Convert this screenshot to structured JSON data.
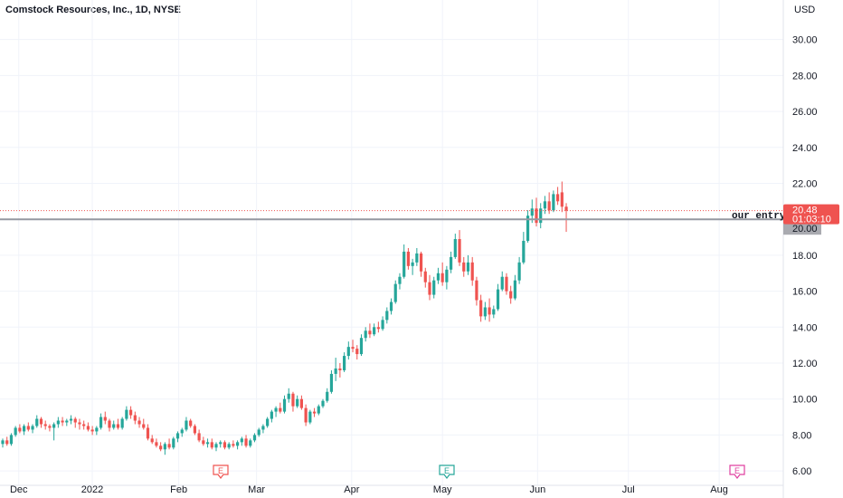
{
  "header": {
    "title": "Comstock Resources, Inc., 1D, NYSE"
  },
  "colors": {
    "up": "#26a69a",
    "down": "#ef5350",
    "grid": "#f0f3fa",
    "entry_line": "#9598a1",
    "last_price_line": "#ef5350",
    "earnings_up": "#26a69a",
    "earnings_down": "#ef5350",
    "earnings_future": "#e040a0"
  },
  "chart_data": {
    "type": "candlestick",
    "title": "Comstock Resources, Inc., 1D, NYSE",
    "currency": "USD",
    "ylim": [
      5.2,
      32.2
    ],
    "y_ticks": [
      "6.00",
      "8.00",
      "10.00",
      "12.00",
      "14.00",
      "16.00",
      "18.00",
      "20.00",
      "22.00",
      "24.00",
      "26.00",
      "28.00",
      "30.00"
    ],
    "x_ticks": [
      "Dec",
      "2022",
      "Feb",
      "Mar",
      "Apr",
      "May",
      "Jun",
      "Jul",
      "Aug"
    ],
    "last_price": {
      "value": "20.48",
      "countdown": "01:03:10"
    },
    "entry_line": {
      "label": "our entry",
      "value": "20.00"
    },
    "earnings_markers": [
      {
        "label": "E",
        "date_label": "Feb",
        "type": "past-down"
      },
      {
        "label": "E",
        "date_label": "May",
        "type": "past-up"
      },
      {
        "label": "E",
        "date_label": "Aug",
        "type": "future"
      }
    ],
    "candles": [
      [
        7.5,
        7.8,
        7.3,
        7.7
      ],
      [
        7.7,
        7.9,
        7.4,
        7.5
      ],
      [
        7.5,
        8.1,
        7.4,
        8.0
      ],
      [
        8.0,
        8.5,
        7.9,
        8.4
      ],
      [
        8.4,
        8.6,
        8.1,
        8.2
      ],
      [
        8.2,
        8.6,
        8.0,
        8.5
      ],
      [
        8.5,
        8.7,
        8.2,
        8.3
      ],
      [
        8.3,
        8.6,
        8.1,
        8.5
      ],
      [
        8.5,
        9.1,
        8.4,
        8.9
      ],
      [
        8.9,
        9.0,
        8.4,
        8.6
      ],
      [
        8.6,
        8.8,
        8.3,
        8.5
      ],
      [
        8.5,
        8.6,
        8.2,
        8.4
      ],
      [
        8.4,
        8.7,
        7.7,
        8.6
      ],
      [
        8.6,
        9.0,
        8.4,
        8.8
      ],
      [
        8.8,
        9.0,
        8.5,
        8.7
      ],
      [
        8.7,
        8.9,
        8.5,
        8.8
      ],
      [
        8.8,
        9.1,
        8.6,
        8.9
      ],
      [
        8.9,
        9.0,
        8.4,
        8.7
      ],
      [
        8.7,
        8.9,
        8.3,
        8.6
      ],
      [
        8.6,
        8.8,
        8.3,
        8.5
      ],
      [
        8.5,
        8.7,
        8.2,
        8.3
      ],
      [
        8.3,
        8.5,
        8.0,
        8.2
      ],
      [
        8.2,
        8.5,
        8.0,
        8.4
      ],
      [
        8.4,
        9.2,
        8.3,
        9.0
      ],
      [
        9.0,
        9.3,
        8.6,
        8.8
      ],
      [
        8.8,
        8.9,
        8.2,
        8.4
      ],
      [
        8.4,
        8.8,
        8.3,
        8.6
      ],
      [
        8.6,
        8.9,
        8.3,
        8.4
      ],
      [
        8.4,
        9.0,
        8.3,
        8.9
      ],
      [
        8.9,
        9.6,
        8.8,
        9.4
      ],
      [
        9.4,
        9.6,
        8.9,
        9.1
      ],
      [
        9.1,
        9.3,
        8.6,
        8.8
      ],
      [
        8.8,
        9.0,
        8.4,
        8.6
      ],
      [
        8.6,
        8.9,
        8.3,
        8.4
      ],
      [
        8.4,
        8.6,
        7.7,
        7.8
      ],
      [
        7.8,
        8.0,
        7.5,
        7.6
      ],
      [
        7.6,
        7.8,
        7.3,
        7.4
      ],
      [
        7.4,
        7.6,
        7.1,
        7.2
      ],
      [
        7.2,
        7.6,
        6.9,
        7.5
      ],
      [
        7.5,
        7.8,
        7.2,
        7.3
      ],
      [
        7.3,
        7.9,
        7.2,
        7.8
      ],
      [
        7.8,
        8.2,
        7.6,
        8.1
      ],
      [
        8.1,
        8.4,
        7.9,
        8.3
      ],
      [
        8.3,
        9.0,
        8.2,
        8.8
      ],
      [
        8.8,
        8.9,
        8.4,
        8.5
      ],
      [
        8.5,
        8.6,
        8.0,
        8.1
      ],
      [
        8.1,
        8.3,
        7.6,
        7.7
      ],
      [
        7.7,
        7.9,
        7.4,
        7.5
      ],
      [
        7.5,
        7.8,
        7.3,
        7.6
      ],
      [
        7.6,
        7.8,
        7.2,
        7.3
      ],
      [
        7.3,
        7.6,
        7.1,
        7.5
      ],
      [
        7.5,
        7.7,
        7.3,
        7.6
      ],
      [
        7.6,
        7.7,
        7.2,
        7.3
      ],
      [
        7.3,
        7.6,
        7.2,
        7.5
      ],
      [
        7.5,
        7.7,
        7.3,
        7.4
      ],
      [
        7.4,
        7.7,
        7.2,
        7.6
      ],
      [
        7.6,
        7.9,
        7.4,
        7.8
      ],
      [
        7.8,
        8.0,
        7.3,
        7.4
      ],
      [
        7.4,
        7.8,
        7.3,
        7.7
      ],
      [
        7.7,
        8.1,
        7.6,
        8.0
      ],
      [
        8.0,
        8.4,
        7.9,
        8.3
      ],
      [
        8.3,
        8.6,
        8.1,
        8.5
      ],
      [
        8.5,
        9.0,
        8.4,
        8.9
      ],
      [
        8.9,
        9.4,
        8.7,
        9.3
      ],
      [
        9.3,
        9.6,
        9.0,
        9.5
      ],
      [
        9.5,
        9.8,
        9.2,
        9.3
      ],
      [
        9.3,
        10.2,
        9.2,
        10.0
      ],
      [
        10.0,
        10.6,
        9.8,
        10.3
      ],
      [
        10.3,
        10.4,
        9.3,
        9.6
      ],
      [
        9.6,
        10.2,
        9.5,
        10.0
      ],
      [
        10.0,
        10.2,
        9.4,
        9.5
      ],
      [
        9.5,
        9.7,
        8.5,
        8.7
      ],
      [
        8.7,
        9.4,
        8.6,
        9.3
      ],
      [
        9.3,
        9.5,
        9.0,
        9.2
      ],
      [
        9.2,
        9.7,
        9.1,
        9.6
      ],
      [
        9.6,
        10.0,
        9.5,
        9.9
      ],
      [
        9.9,
        10.6,
        9.8,
        10.4
      ],
      [
        10.4,
        11.6,
        10.3,
        11.4
      ],
      [
        11.4,
        12.3,
        11.0,
        11.7
      ],
      [
        11.7,
        12.0,
        11.2,
        11.6
      ],
      [
        11.6,
        12.6,
        11.5,
        12.4
      ],
      [
        12.4,
        13.2,
        12.2,
        12.9
      ],
      [
        12.9,
        13.3,
        12.6,
        12.8
      ],
      [
        12.8,
        13.0,
        12.2,
        12.5
      ],
      [
        12.5,
        13.6,
        12.4,
        13.4
      ],
      [
        13.4,
        14.0,
        13.2,
        13.8
      ],
      [
        13.8,
        14.2,
        13.4,
        13.6
      ],
      [
        13.6,
        14.2,
        13.5,
        14.0
      ],
      [
        14.0,
        14.3,
        13.7,
        13.9
      ],
      [
        13.9,
        14.6,
        13.8,
        14.4
      ],
      [
        14.4,
        15.1,
        14.2,
        14.9
      ],
      [
        14.9,
        15.6,
        14.7,
        15.4
      ],
      [
        15.4,
        16.6,
        15.3,
        16.4
      ],
      [
        16.4,
        17.0,
        16.1,
        16.8
      ],
      [
        16.8,
        18.6,
        16.7,
        18.2
      ],
      [
        18.2,
        18.4,
        17.2,
        17.4
      ],
      [
        17.4,
        17.8,
        16.9,
        17.6
      ],
      [
        17.6,
        18.4,
        17.4,
        18.1
      ],
      [
        18.1,
        18.2,
        16.8,
        17.1
      ],
      [
        17.1,
        17.3,
        16.2,
        16.5
      ],
      [
        16.5,
        16.9,
        15.5,
        15.8
      ],
      [
        15.8,
        16.8,
        15.6,
        16.6
      ],
      [
        16.6,
        17.3,
        16.4,
        17.0
      ],
      [
        17.0,
        17.6,
        16.3,
        16.5
      ],
      [
        16.5,
        17.4,
        16.1,
        17.2
      ],
      [
        17.2,
        18.2,
        17.0,
        17.9
      ],
      [
        17.9,
        19.2,
        17.8,
        18.9
      ],
      [
        18.9,
        19.4,
        17.4,
        17.6
      ],
      [
        17.6,
        17.9,
        16.8,
        17.1
      ],
      [
        17.1,
        18.0,
        16.9,
        17.6
      ],
      [
        17.6,
        17.9,
        16.3,
        16.6
      ],
      [
        16.6,
        16.8,
        15.2,
        15.5
      ],
      [
        15.5,
        15.8,
        14.3,
        14.6
      ],
      [
        14.6,
        15.4,
        14.4,
        15.1
      ],
      [
        15.1,
        15.6,
        14.3,
        14.7
      ],
      [
        14.7,
        15.2,
        14.5,
        15.0
      ],
      [
        15.0,
        16.4,
        14.9,
        16.1
      ],
      [
        16.1,
        17.1,
        16.0,
        16.8
      ],
      [
        16.8,
        17.0,
        15.8,
        16.0
      ],
      [
        16.0,
        16.3,
        15.3,
        15.6
      ],
      [
        15.6,
        16.9,
        15.5,
        16.6
      ],
      [
        16.6,
        17.9,
        16.4,
        17.6
      ],
      [
        17.6,
        19.3,
        17.5,
        18.8
      ],
      [
        18.8,
        20.5,
        18.7,
        20.2
      ],
      [
        20.2,
        21.1,
        19.8,
        20.6
      ],
      [
        20.6,
        21.2,
        19.6,
        19.8
      ],
      [
        19.8,
        20.9,
        19.5,
        20.6
      ],
      [
        20.6,
        21.3,
        20.3,
        21.0
      ],
      [
        21.0,
        21.5,
        20.3,
        20.5
      ],
      [
        20.5,
        21.6,
        20.4,
        21.4
      ],
      [
        21.4,
        21.8,
        20.8,
        21.0
      ],
      [
        21.5,
        22.1,
        20.4,
        20.7
      ],
      [
        20.7,
        20.9,
        19.3,
        20.48
      ]
    ]
  }
}
